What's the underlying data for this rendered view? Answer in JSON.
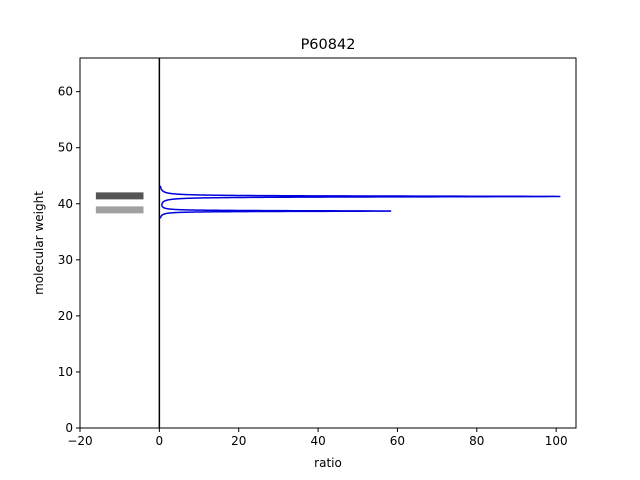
{
  "chart_data": {
    "type": "line",
    "title": "P60842",
    "xlabel": "ratio",
    "ylabel": "molecular weight",
    "xlim": [
      -20,
      105
    ],
    "ylim": [
      0,
      66
    ],
    "x_ticks": [
      -20,
      0,
      20,
      40,
      60,
      80,
      100
    ],
    "y_ticks": [
      0,
      10,
      20,
      30,
      40,
      50,
      60
    ],
    "x_tick_labels": [
      "−20",
      "0",
      "20",
      "40",
      "60",
      "80",
      "100"
    ],
    "y_tick_labels": [
      "0",
      "10",
      "20",
      "30",
      "40",
      "50",
      "60"
    ],
    "grid": false,
    "legend": "none",
    "vertical_line": {
      "x": 0,
      "color": "#000000"
    },
    "bands": [
      {
        "mw": 41.4,
        "x_start": -16,
        "x_end": -4,
        "color": "#555555"
      },
      {
        "mw": 38.9,
        "x_start": -16,
        "x_end": -4,
        "color": "#a0a0a0"
      }
    ],
    "series": [
      {
        "color": "#0000dd",
        "peaks": [
          {
            "mw": 41.3,
            "ratio": 101,
            "width": 0.09
          },
          {
            "mw": 38.7,
            "ratio": 58.3,
            "width": 0.075
          }
        ],
        "mw_range": [
          37.4,
          43.2
        ]
      }
    ]
  }
}
